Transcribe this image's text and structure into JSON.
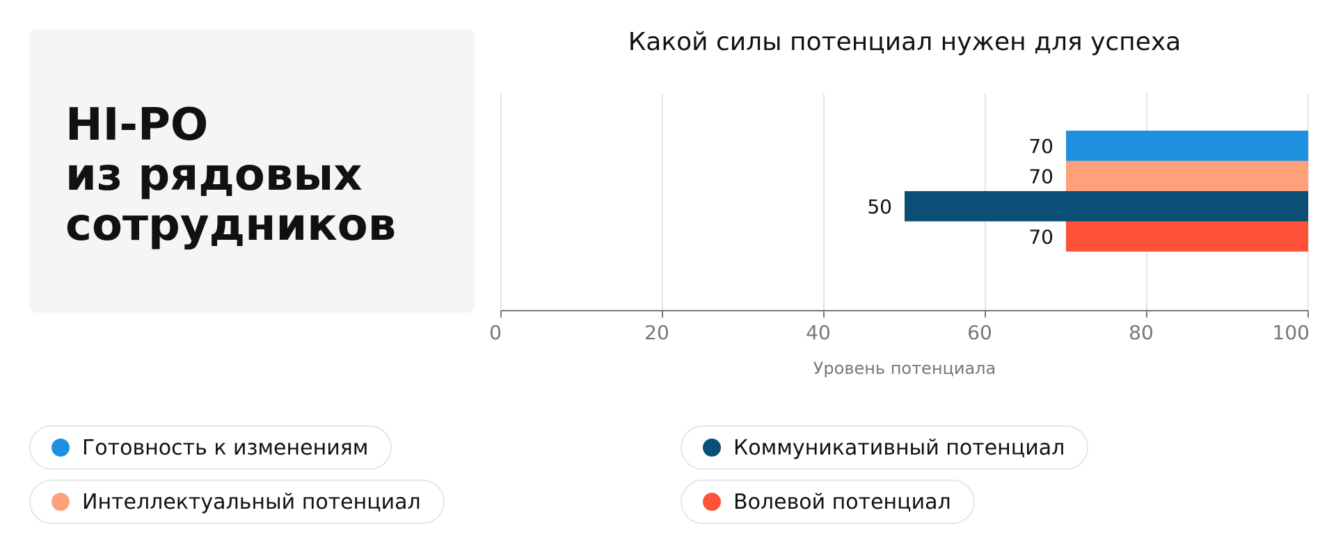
{
  "card": {
    "title_lines": [
      "HI-PO",
      "из рядовых",
      "сотрудников"
    ]
  },
  "chart_data": {
    "type": "bar",
    "orientation": "horizontal",
    "title": "Какой силы потенциал нужен для успеха",
    "xlabel": "Уровень потенциала",
    "ylabel": "",
    "xlim": [
      0,
      100
    ],
    "xticks": [
      0,
      20,
      40,
      60,
      80,
      100
    ],
    "grid": true,
    "bars_extend_from": "right",
    "series": [
      {
        "name": "Готовность к изменениям",
        "value": 70,
        "color": "#1e90e0"
      },
      {
        "name": "Интеллектуальный потенциал",
        "value": 70,
        "color": "#ffa07a"
      },
      {
        "name": "Коммуникативный потенциал",
        "value": 50,
        "color": "#0b4f77"
      },
      {
        "name": "Волевой потенциал",
        "value": 70,
        "color": "#ff5238"
      }
    ]
  },
  "legend": {
    "placement": "bottom",
    "items": [
      {
        "label": "Готовность к изменениям",
        "color": "#1e90e0"
      },
      {
        "label": "Интеллектуальный потенциал",
        "color": "#ffa07a"
      },
      {
        "label": "Коммуникативный потенциал",
        "color": "#0b4f77"
      },
      {
        "label": "Волевой потенциал",
        "color": "#ff5238"
      }
    ]
  }
}
